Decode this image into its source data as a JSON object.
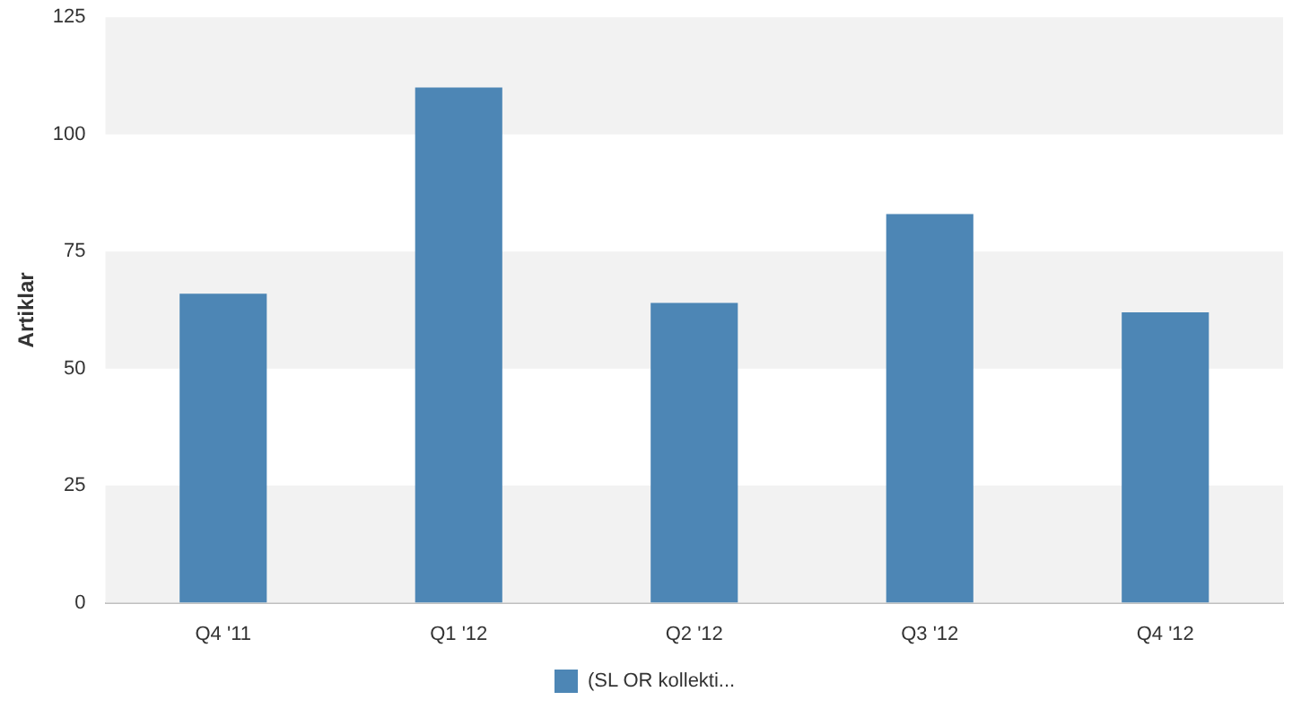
{
  "chart_data": {
    "type": "bar",
    "ylabel": "Artiklar",
    "categories": [
      "Q4 '11",
      "Q1 '12",
      "Q2 '12",
      "Q3 '12",
      "Q4 '12"
    ],
    "series": [
      {
        "name": "(SL OR kollekti...",
        "color": "#4d86b5",
        "values": [
          66,
          110,
          64,
          83,
          62
        ]
      }
    ],
    "ylim": [
      0,
      125
    ],
    "yticks": [
      0,
      25,
      50,
      75,
      100,
      125
    ],
    "grid": false,
    "legend": "bottom",
    "bands": [
      {
        "axis": "y",
        "from": 0,
        "to": 25,
        "color": "#f2f2f2"
      },
      {
        "axis": "y",
        "from": 50,
        "to": 75,
        "color": "#f2f2f2"
      },
      {
        "axis": "y",
        "from": 100,
        "to": 125,
        "color": "#f2f2f2"
      }
    ]
  }
}
